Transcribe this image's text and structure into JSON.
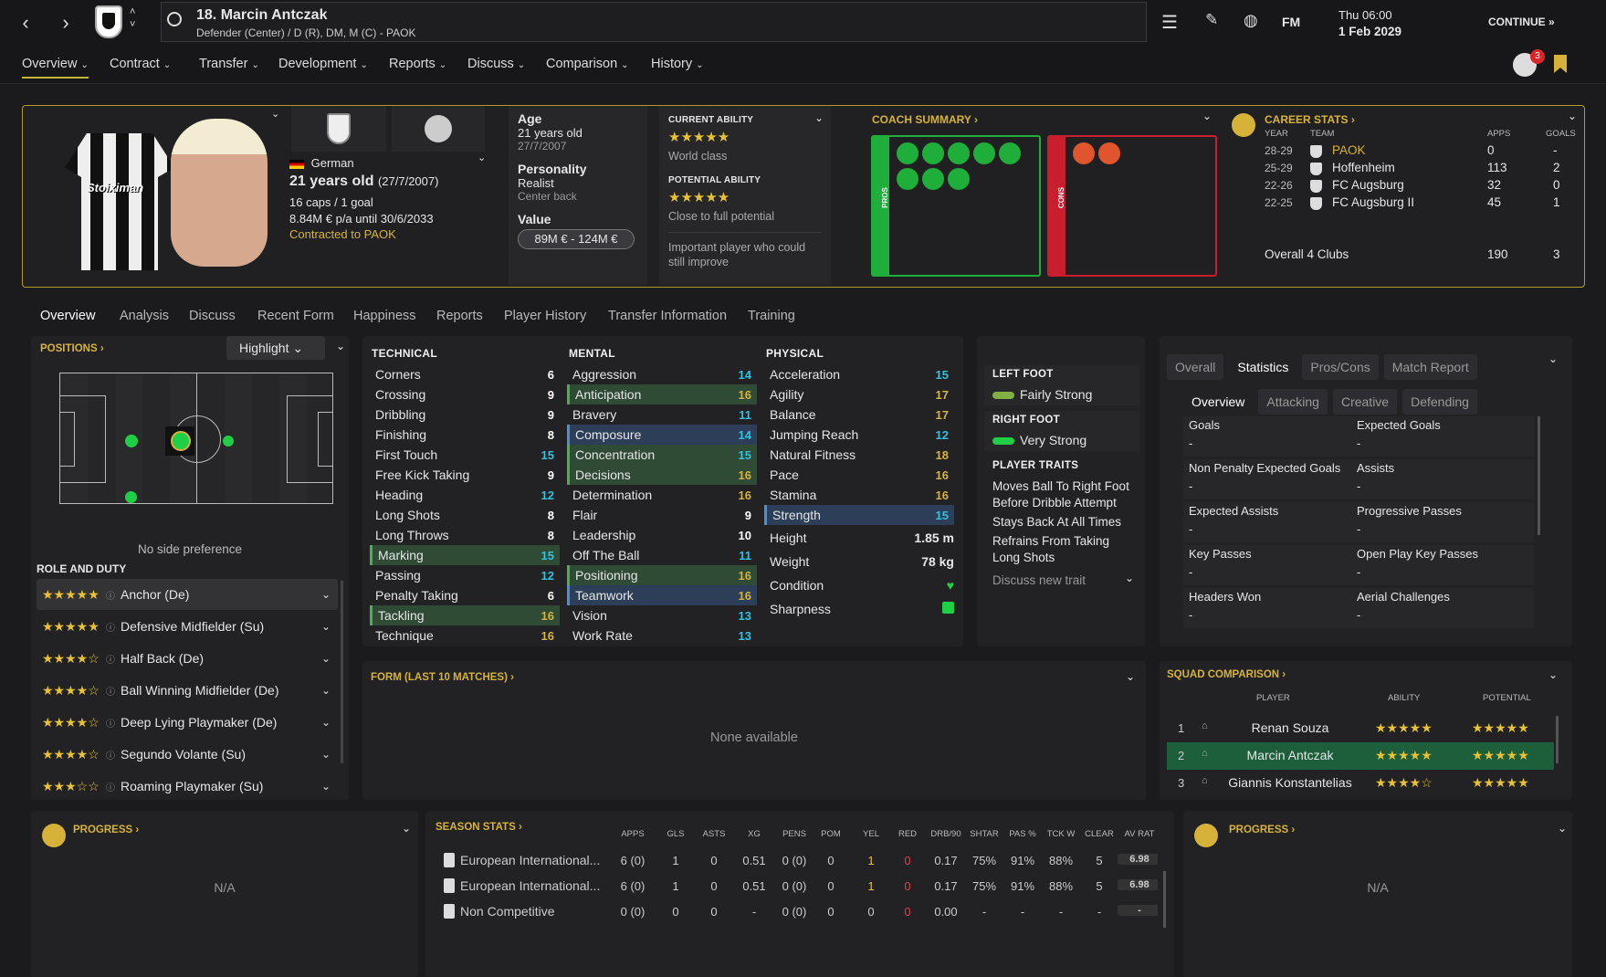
{
  "topbar": {
    "player_title": "18. Marcin Antczak",
    "player_sub": "Defender (Center) / D (R), DM, M (C) - PAOK",
    "fm_label": "FM",
    "day_time": "Thu 06:00",
    "date": "1 Feb 2029",
    "continue_label": "CONTINUE",
    "notif_count": "3"
  },
  "menu": [
    "Overview",
    "Contract",
    "Transfer",
    "Development",
    "Reports",
    "Discuss",
    "Comparison",
    "History"
  ],
  "profile": {
    "nationality": "German",
    "age_line": "21 years old",
    "dob_paren": "(27/7/2007)",
    "caps": "16 caps / 1 goal",
    "wage": "8.84M € p/a until 30/6/2033",
    "contract": "Contracted to PAOK",
    "shirt_sponsor": "Stoiximan"
  },
  "info": {
    "age_label": "Age",
    "age": "21 years old",
    "dob": "27/7/2007",
    "personality_label": "Personality",
    "personality": "Realist",
    "position_desc": "Center back",
    "value_label": "Value",
    "value": "89M € - 124M €"
  },
  "ability": {
    "ca_label": "CURRENT ABILITY",
    "ca_stars": 4.5,
    "ca_text": "World class",
    "pa_label": "POTENTIAL ABILITY",
    "pa_stars": 4.5,
    "pa_text": "Close to full potential",
    "note": "Important player who could still improve"
  },
  "coach": {
    "title": "COACH SUMMARY",
    "pros_label": "PROS",
    "cons_label": "CONS"
  },
  "career": {
    "title": "CAREER STATS",
    "h_year": "YEAR",
    "h_team": "TEAM",
    "h_apps": "APPS",
    "h_goals": "GOALS",
    "rows": [
      {
        "year": "28-29",
        "team": "PAOK",
        "apps": "0",
        "goals": "-"
      },
      {
        "year": "25-29",
        "team": "Hoffenheim",
        "apps": "113",
        "goals": "2"
      },
      {
        "year": "22-26",
        "team": "FC Augsburg",
        "apps": "32",
        "goals": "0"
      },
      {
        "year": "22-25",
        "team": "FC Augsburg II",
        "apps": "45",
        "goals": "1"
      }
    ],
    "overall_label": "Overall 4 Clubs",
    "overall_apps": "190",
    "overall_goals": "3"
  },
  "tabs": [
    "Overview",
    "Analysis",
    "Discuss",
    "Recent Form",
    "Happiness",
    "Reports",
    "Player History",
    "Transfer Information",
    "Training"
  ],
  "positions": {
    "title": "POSITIONS",
    "highlight": "Highlight",
    "side_pref": "No side preference",
    "role_title": "ROLE AND DUTY",
    "roles": [
      {
        "name": "Anchor (De)",
        "stars": 4.5
      },
      {
        "name": "Defensive Midfielder (Su)",
        "stars": 4.5
      },
      {
        "name": "Half Back (De)",
        "stars": 4
      },
      {
        "name": "Ball Winning Midfielder (De)",
        "stars": 4
      },
      {
        "name": "Deep Lying Playmaker (De)",
        "stars": 4
      },
      {
        "name": "Segundo Volante (Su)",
        "stars": 4
      },
      {
        "name": "Roaming Playmaker (Su)",
        "stars": 3
      }
    ]
  },
  "technical": {
    "title": "TECHNICAL",
    "rows": [
      [
        "Corners",
        "6",
        ""
      ],
      [
        "Crossing",
        "9",
        ""
      ],
      [
        "Dribbling",
        "9",
        ""
      ],
      [
        "Finishing",
        "8",
        ""
      ],
      [
        "First Touch",
        "15",
        "c"
      ],
      [
        "Free Kick Taking",
        "9",
        ""
      ],
      [
        "Heading",
        "12",
        "c"
      ],
      [
        "Long Shots",
        "8",
        ""
      ],
      [
        "Long Throws",
        "8",
        ""
      ],
      [
        "Marking",
        "15",
        "cg"
      ],
      [
        "Passing",
        "12",
        "c"
      ],
      [
        "Penalty Taking",
        "6",
        ""
      ],
      [
        "Tackling",
        "16",
        "gg"
      ],
      [
        "Technique",
        "16",
        "g"
      ]
    ]
  },
  "mental": {
    "title": "MENTAL",
    "rows": [
      [
        "Aggression",
        "14",
        "c"
      ],
      [
        "Anticipation",
        "16",
        "gg"
      ],
      [
        "Bravery",
        "11",
        "c"
      ],
      [
        "Composure",
        "14",
        "cb"
      ],
      [
        "Concentration",
        "15",
        "cg"
      ],
      [
        "Decisions",
        "16",
        "gg"
      ],
      [
        "Determination",
        "16",
        "g"
      ],
      [
        "Flair",
        "9",
        ""
      ],
      [
        "Leadership",
        "10",
        "w"
      ],
      [
        "Off The Ball",
        "11",
        "c"
      ],
      [
        "Positioning",
        "16",
        "gg"
      ],
      [
        "Teamwork",
        "16",
        "gb"
      ],
      [
        "Vision",
        "13",
        "c"
      ],
      [
        "Work Rate",
        "13",
        "c"
      ]
    ]
  },
  "physical": {
    "title": "PHYSICAL",
    "rows": [
      [
        "Acceleration",
        "15",
        "c"
      ],
      [
        "Agility",
        "17",
        "g"
      ],
      [
        "Balance",
        "17",
        "g"
      ],
      [
        "Jumping Reach",
        "12",
        "c"
      ],
      [
        "Natural Fitness",
        "18",
        "g"
      ],
      [
        "Pace",
        "16",
        "g"
      ],
      [
        "Stamina",
        "16",
        "g"
      ],
      [
        "Strength",
        "15",
        "cb"
      ]
    ],
    "height_label": "Height",
    "height": "1.85 m",
    "weight_label": "Weight",
    "weight": "78 kg",
    "condition_label": "Condition",
    "sharpness_label": "Sharpness"
  },
  "feet": {
    "left_title": "LEFT FOOT",
    "left": "Fairly Strong",
    "right_title": "RIGHT FOOT",
    "right": "Very Strong",
    "traits_title": "PLAYER TRAITS",
    "traits": [
      "Moves Ball To Right Foot Before Dribble Attempt",
      "Stays Back At All Times",
      "Refrains From Taking Long Shots"
    ],
    "discuss": "Discuss new trait"
  },
  "stats_panel": {
    "tabs": [
      "Overall",
      "Statistics",
      "Pros/Cons",
      "Match Report"
    ],
    "subtabs": [
      "Overview",
      "Attacking",
      "Creative",
      "Defending"
    ],
    "items": [
      [
        "Goals",
        "-",
        "Expected Goals",
        "-"
      ],
      [
        "Non Penalty Expected Goals",
        "-",
        "Assists",
        "-"
      ],
      [
        "Expected Assists",
        "-",
        "Progressive Passes",
        "-"
      ],
      [
        "Key Passes",
        "-",
        "Open Play Key Passes",
        "-"
      ],
      [
        "Headers Won",
        "-",
        "Aerial Challenges",
        "-"
      ]
    ]
  },
  "form": {
    "title": "FORM (LAST 10 MATCHES)",
    "empty": "None available"
  },
  "squad": {
    "title": "SQUAD COMPARISON",
    "h_player": "PLAYER",
    "h_ability": "ABILITY",
    "h_potential": "POTENTIAL",
    "rows": [
      {
        "rank": "1",
        "name": "Renan Souza",
        "ab": 4.5,
        "pot": 4.5
      },
      {
        "rank": "2",
        "name": "Marcin Antczak",
        "ab": 4.5,
        "pot": 4.5
      },
      {
        "rank": "3",
        "name": "Giannis Konstantelias",
        "ab": 4,
        "pot": 4.5
      }
    ]
  },
  "progress_left": {
    "title": "PROGRESS",
    "value": "N/A"
  },
  "progress_right": {
    "title": "PROGRESS",
    "value": "N/A"
  },
  "season": {
    "title": "SEASON STATS",
    "headers": [
      "APPS",
      "GLS",
      "ASTS",
      "XG",
      "PENS",
      "POM",
      "YEL",
      "RED",
      "DRB/90",
      "SHTAR",
      "PAS %",
      "TCK W",
      "CLEAR",
      "AV RAT"
    ],
    "rows": [
      {
        "comp": "European International...",
        "vals": [
          "6 (0)",
          "1",
          "0",
          "0.51",
          "0 (0)",
          "0",
          "1",
          "0",
          "0.17",
          "75%",
          "91%",
          "88%",
          "5",
          "6.98"
        ]
      },
      {
        "comp": "European International...",
        "vals": [
          "6 (0)",
          "1",
          "0",
          "0.51",
          "0 (0)",
          "0",
          "1",
          "0",
          "0.17",
          "75%",
          "91%",
          "88%",
          "5",
          "6.98"
        ]
      },
      {
        "comp": "Non Competitive",
        "vals": [
          "0 (0)",
          "0",
          "0",
          "-",
          "0 (0)",
          "0",
          "0",
          "0",
          "0.00",
          "-",
          "-",
          "-",
          "-",
          "-"
        ]
      }
    ]
  },
  "colors": {
    "gold": "#d6b338",
    "cyan": "#2fc3e0",
    "green_pros": "#1fae3a",
    "red_cons": "#c81e2e",
    "star": "#e8c235"
  }
}
